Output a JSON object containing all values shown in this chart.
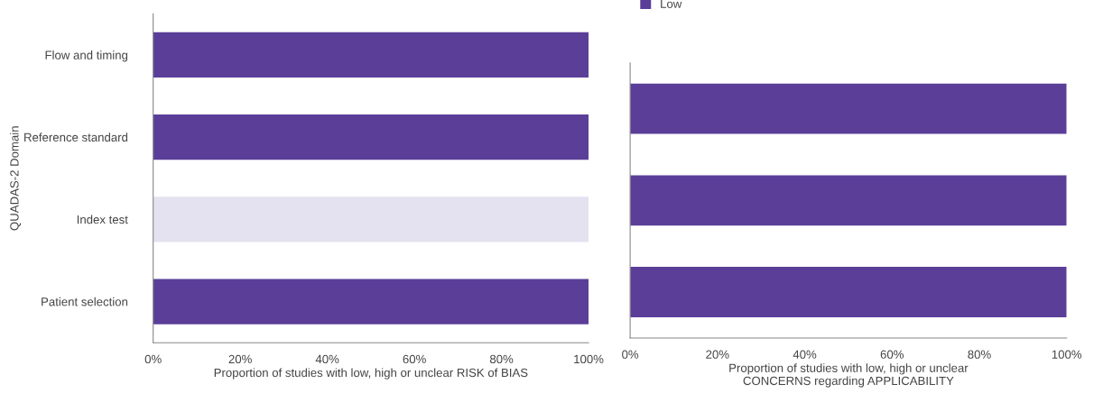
{
  "chart_data": [
    {
      "type": "bar",
      "orientation": "horizontal",
      "ylabel": "QUADAS-2 Domain",
      "xlabel": "Proportion of studies with low, high or unclear RISK of BIAS",
      "categories": [
        "Flow and timing",
        "Reference standard",
        "Index test",
        "Patient selection"
      ],
      "values": [
        100,
        100,
        100,
        100
      ],
      "colors": [
        "#5a3e98",
        "#5a3e98",
        "#e4e2f0",
        "#5a3e98"
      ],
      "xlim": [
        0,
        100
      ],
      "xticks": [
        {
          "value": 0,
          "label": "0%"
        },
        {
          "value": 20,
          "label": "20%"
        },
        {
          "value": 40,
          "label": "40%"
        },
        {
          "value": 60,
          "label": "60%"
        },
        {
          "value": 80,
          "label": "80%"
        },
        {
          "value": 100,
          "label": "100%"
        }
      ],
      "grid": false,
      "legend": false
    },
    {
      "type": "bar",
      "orientation": "horizontal",
      "xlabel": "Proportion of studies with low, high or unclear\nCONCERNS regarding APPLICABILITY",
      "categories": [
        null,
        null,
        null
      ],
      "series": [
        {
          "name": "Low",
          "color": "#5a3e98",
          "values": [
            100,
            100,
            100
          ]
        }
      ],
      "xlim": [
        0,
        100
      ],
      "xticks": [
        {
          "value": 0,
          "label": "0%"
        },
        {
          "value": 20,
          "label": "20%"
        },
        {
          "value": 40,
          "label": "40%"
        },
        {
          "value": 60,
          "label": "60%"
        },
        {
          "value": 80,
          "label": "80%"
        },
        {
          "value": 100,
          "label": "100%"
        }
      ],
      "grid": false,
      "legend": "top left"
    }
  ]
}
